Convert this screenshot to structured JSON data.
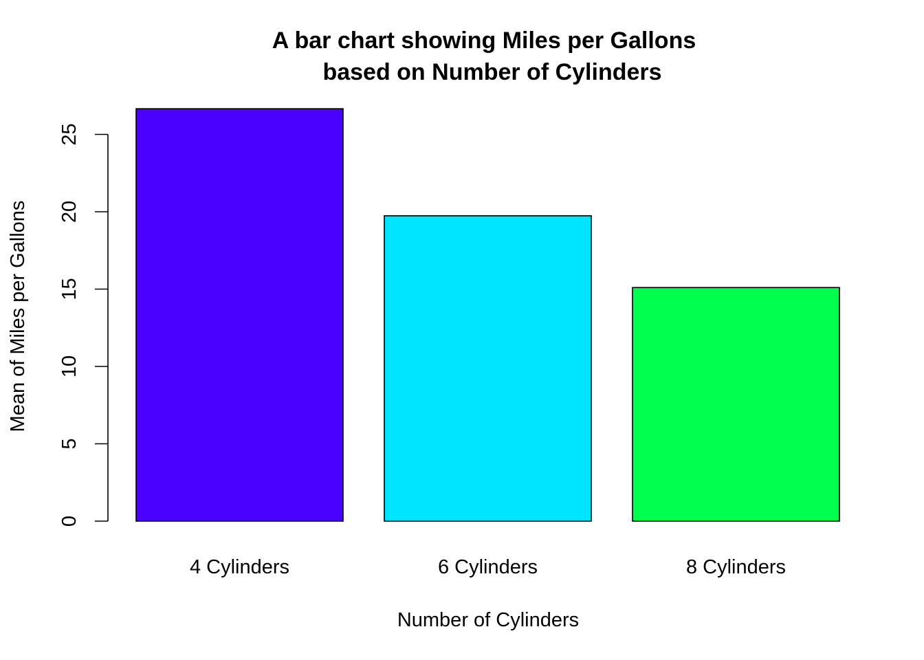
{
  "chart_data": {
    "type": "bar",
    "title_line1": "A bar chart showing Miles per Gallons",
    "title_line2": "based on Number of Cylinders",
    "xlabel": "Number of Cylinders",
    "ylabel": "Mean of Miles per Gallons",
    "categories": [
      "4 Cylinders",
      "6 Cylinders",
      "8 Cylinders"
    ],
    "values": [
      26.66,
      19.74,
      15.1
    ],
    "colors": [
      "#4c00ff",
      "#00e5ff",
      "#00ff4d"
    ],
    "ylim": [
      0,
      25
    ],
    "yticks": [
      "0",
      "5",
      "10",
      "15",
      "20",
      "25"
    ],
    "grid": false,
    "legend": "none"
  }
}
